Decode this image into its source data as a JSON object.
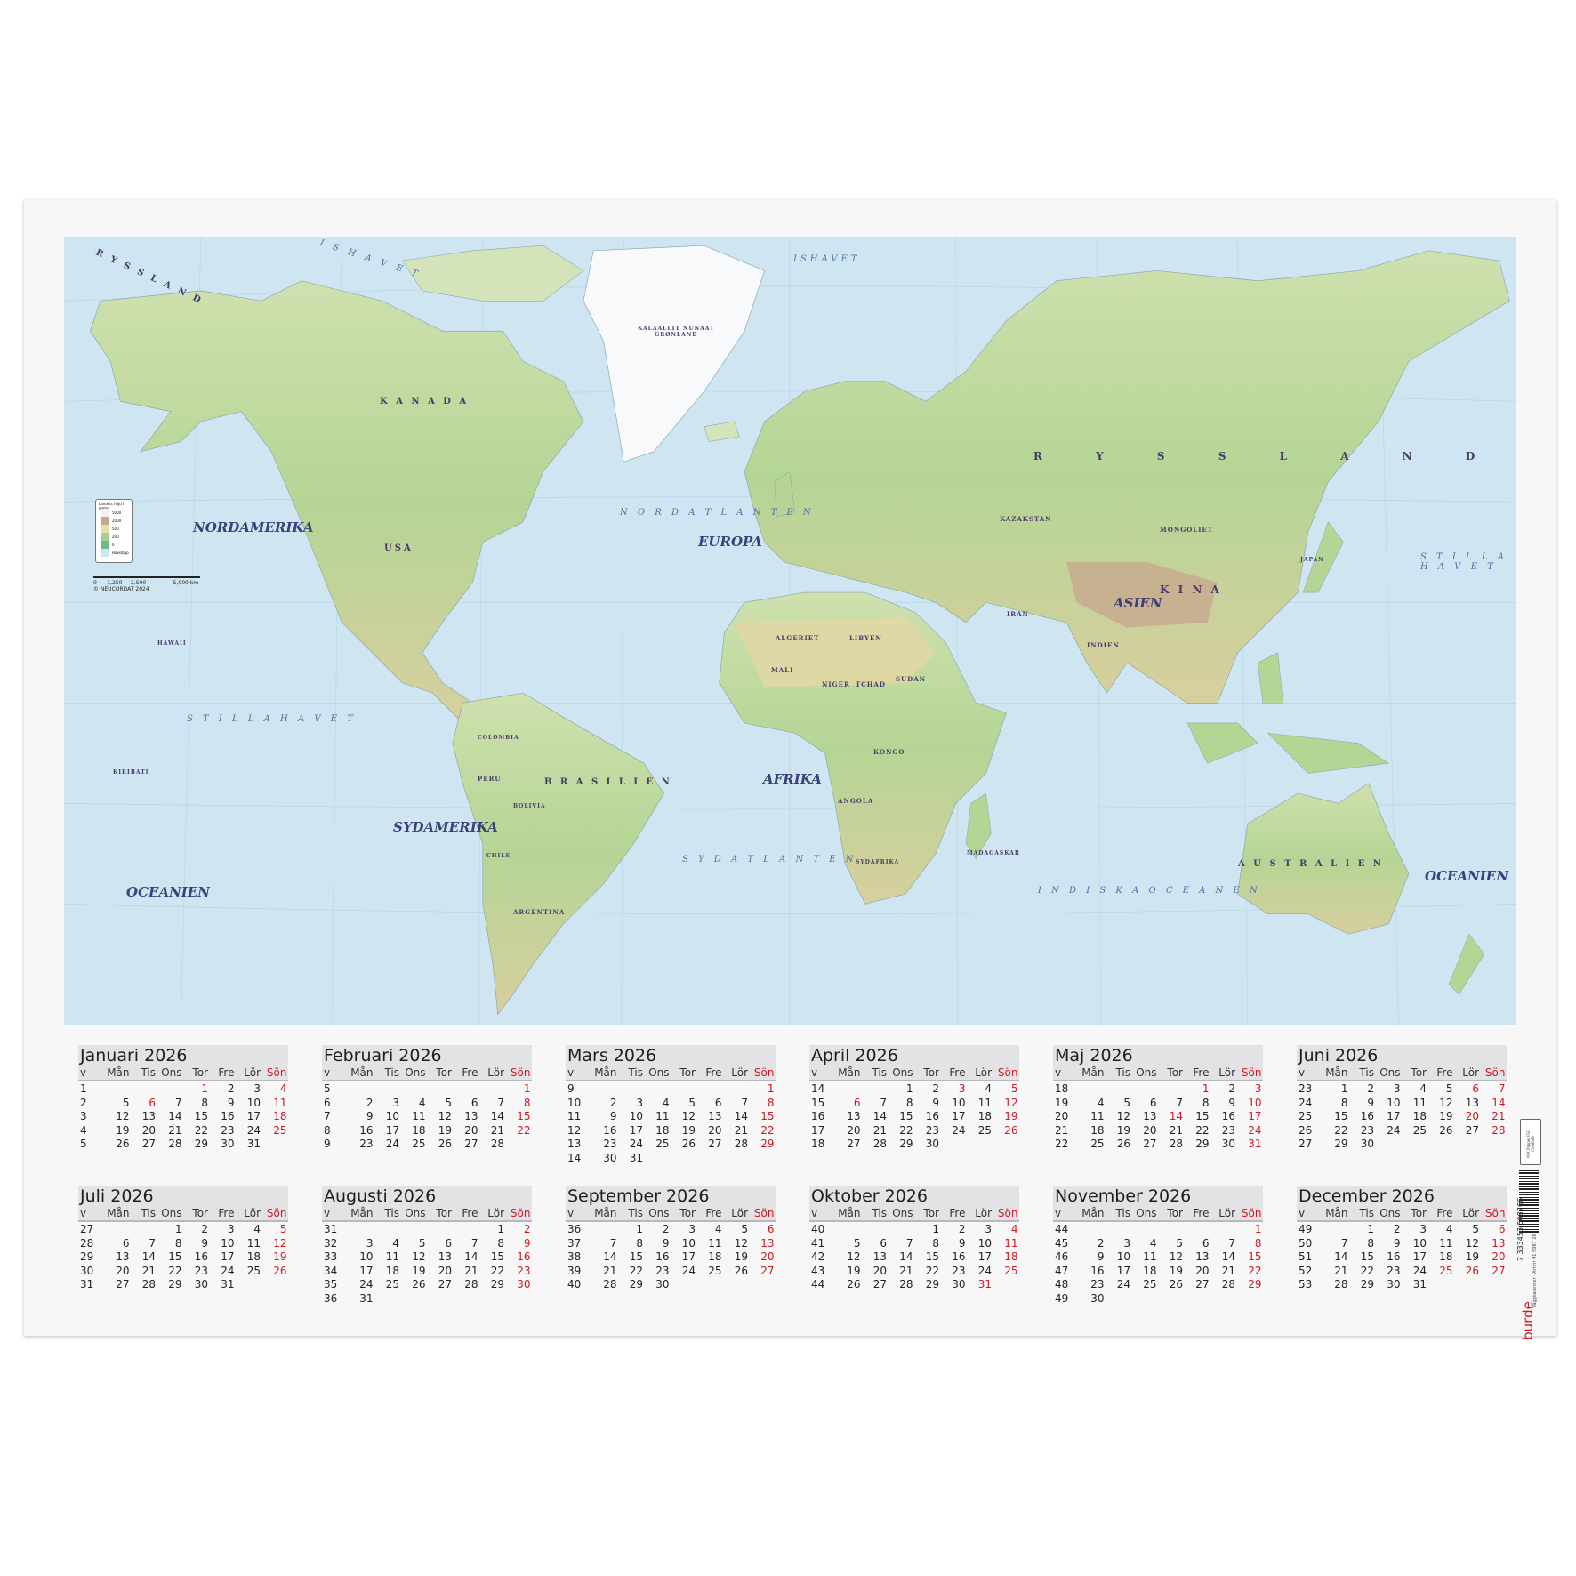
{
  "map": {
    "continents": {
      "north_america": "NORDAMERIKA",
      "south_america": "SYDAMERIKA",
      "europe": "EUROPA",
      "africa": "AFRIKA",
      "asia": "ASIEN",
      "oceania_left": "OCEANIEN",
      "oceania_right": "OCEANIEN"
    },
    "oceans": {
      "ishavet_left": "I S H A V E T",
      "ishavet_mid": "ISHAVET",
      "nordatlanten": "N O R D A T L A N T E N",
      "sydatlanten": "S Y D A T L A N T E N",
      "stilla_havet_left": "S T I L L A   H A V E T",
      "stilla_havet_right": "S T I L L A\nH A V E T",
      "indiska": "I N D I S K A   O C E A N E N"
    },
    "countries": {
      "ryssland_left": "R Y S S L A N D",
      "ryssland": "R Y S S L A N D",
      "kanada": "K A N A D A",
      "usa": "USA",
      "kina": "K I N A",
      "brasilien": "B R A S I L I E N",
      "australien": "A U S T R A L I E N",
      "greenland": "KALAALLIT NUNAAT\nGRØNLAND",
      "mongoliet": "MONGOLIET",
      "kazakstan": "KAZAKSTAN",
      "algeriet": "ALGERIET",
      "libyen": "LIBYEN",
      "argentina": "ARGENTINA",
      "peru": "PERU",
      "colombia": "COLOMBIA",
      "indien": "INDIEN",
      "iran": "IRAN",
      "mali": "MALI",
      "niger": "NIGER",
      "tchad": "TCHAD",
      "sudan": "SUDAN",
      "kongo": "KONGO",
      "angola": "ANGOLA",
      "sydafrika": "SYDAFRIKA",
      "madagaskar": "MADAGASKAR",
      "hawaii": "HAWAII",
      "kiribati": "KIRIBATI",
      "japan": "JAPAN",
      "chile": "CHILE",
      "bolivia": "BOLIVIA"
    },
    "legend": {
      "title": "Landets höjd i meter",
      "items": [
        "5000",
        "2000",
        "500",
        "200",
        "0",
        "Havsdjup"
      ],
      "colors": [
        "#f4f0f4",
        "#c9a88a",
        "#e7dfa8",
        "#a7cf8e",
        "#6fb98a",
        "#cfe6f2"
      ]
    },
    "scale": {
      "ticks": "0      1,250     2,500                5,000 km",
      "copyright": "© NEUCORDAT 2024"
    },
    "colors": {
      "ocean": "#cfe6f2",
      "land": "#b9d79a",
      "highland": "#d9c79b",
      "mountain": "#c3a58a",
      "ice": "#ffffff"
    }
  },
  "calendar": {
    "header": [
      "v",
      "Mån",
      "Tis",
      "Ons",
      "Tor",
      "Fre",
      "Lör",
      "Sön"
    ],
    "holiday_color": "#d01824",
    "months": [
      {
        "title": "Januari 2026",
        "weeks": [
          [
            "1",
            "",
            "",
            "",
            "1",
            "2",
            "3",
            "4"
          ],
          [
            "2",
            "5",
            "6",
            "7",
            "8",
            "9",
            "10",
            "11"
          ],
          [
            "3",
            "12",
            "13",
            "14",
            "15",
            "16",
            "17",
            "18"
          ],
          [
            "4",
            "19",
            "20",
            "21",
            "22",
            "23",
            "24",
            "25"
          ],
          [
            "5",
            "26",
            "27",
            "28",
            "29",
            "30",
            "31",
            ""
          ]
        ],
        "red": [
          "1",
          "6"
        ]
      },
      {
        "title": "Februari 2026",
        "weeks": [
          [
            "5",
            "",
            "",
            "",
            "",
            "",
            "",
            "1"
          ],
          [
            "6",
            "2",
            "3",
            "4",
            "5",
            "6",
            "7",
            "8"
          ],
          [
            "7",
            "9",
            "10",
            "11",
            "12",
            "13",
            "14",
            "15"
          ],
          [
            "8",
            "16",
            "17",
            "18",
            "19",
            "20",
            "21",
            "22"
          ],
          [
            "9",
            "23",
            "24",
            "25",
            "26",
            "27",
            "28",
            ""
          ]
        ],
        "red": []
      },
      {
        "title": "Mars 2026",
        "weeks": [
          [
            "9",
            "",
            "",
            "",
            "",
            "",
            "",
            "1"
          ],
          [
            "10",
            "2",
            "3",
            "4",
            "5",
            "6",
            "7",
            "8"
          ],
          [
            "11",
            "9",
            "10",
            "11",
            "12",
            "13",
            "14",
            "15"
          ],
          [
            "12",
            "16",
            "17",
            "18",
            "19",
            "20",
            "21",
            "22"
          ],
          [
            "13",
            "23",
            "24",
            "25",
            "26",
            "27",
            "28",
            "29"
          ],
          [
            "14",
            "30",
            "31",
            "",
            "",
            "",
            "",
            ""
          ]
        ],
        "red": []
      },
      {
        "title": "April 2026",
        "weeks": [
          [
            "14",
            "",
            "",
            "1",
            "2",
            "3",
            "4",
            "5"
          ],
          [
            "15",
            "6",
            "7",
            "8",
            "9",
            "10",
            "11",
            "12"
          ],
          [
            "16",
            "13",
            "14",
            "15",
            "16",
            "17",
            "18",
            "19"
          ],
          [
            "17",
            "20",
            "21",
            "22",
            "23",
            "24",
            "25",
            "26"
          ],
          [
            "18",
            "27",
            "28",
            "29",
            "30",
            "",
            "",
            ""
          ]
        ],
        "red": [
          "3",
          "6"
        ]
      },
      {
        "title": "Maj 2026",
        "weeks": [
          [
            "18",
            "",
            "",
            "",
            "",
            "1",
            "2",
            "3"
          ],
          [
            "19",
            "4",
            "5",
            "6",
            "7",
            "8",
            "9",
            "10"
          ],
          [
            "20",
            "11",
            "12",
            "13",
            "14",
            "15",
            "16",
            "17"
          ],
          [
            "21",
            "18",
            "19",
            "20",
            "21",
            "22",
            "23",
            "24"
          ],
          [
            "22",
            "25",
            "26",
            "27",
            "28",
            "29",
            "30",
            "31"
          ]
        ],
        "red": [
          "1",
          "14"
        ]
      },
      {
        "title": "Juni 2026",
        "weeks": [
          [
            "23",
            "1",
            "2",
            "3",
            "4",
            "5",
            "6",
            "7"
          ],
          [
            "24",
            "8",
            "9",
            "10",
            "11",
            "12",
            "13",
            "14"
          ],
          [
            "25",
            "15",
            "16",
            "17",
            "18",
            "19",
            "20",
            "21"
          ],
          [
            "26",
            "22",
            "23",
            "24",
            "25",
            "26",
            "27",
            "28"
          ],
          [
            "27",
            "29",
            "30",
            "",
            "",
            "",
            "",
            ""
          ]
        ],
        "red": [
          "6",
          "20"
        ]
      },
      {
        "title": "Juli 2026",
        "weeks": [
          [
            "27",
            "",
            "",
            "1",
            "2",
            "3",
            "4",
            "5"
          ],
          [
            "28",
            "6",
            "7",
            "8",
            "9",
            "10",
            "11",
            "12"
          ],
          [
            "29",
            "13",
            "14",
            "15",
            "16",
            "17",
            "18",
            "19"
          ],
          [
            "30",
            "20",
            "21",
            "22",
            "23",
            "24",
            "25",
            "26"
          ],
          [
            "31",
            "27",
            "28",
            "29",
            "30",
            "31",
            "",
            ""
          ]
        ],
        "red": []
      },
      {
        "title": "Augusti 2026",
        "weeks": [
          [
            "31",
            "",
            "",
            "",
            "",
            "",
            "1",
            "2"
          ],
          [
            "32",
            "3",
            "4",
            "5",
            "6",
            "7",
            "8",
            "9"
          ],
          [
            "33",
            "10",
            "11",
            "12",
            "13",
            "14",
            "15",
            "16"
          ],
          [
            "34",
            "17",
            "18",
            "19",
            "20",
            "21",
            "22",
            "23"
          ],
          [
            "35",
            "24",
            "25",
            "26",
            "27",
            "28",
            "29",
            "30"
          ],
          [
            "36",
            "31",
            "",
            "",
            "",
            "",
            "",
            ""
          ]
        ],
        "red": []
      },
      {
        "title": "September 2026",
        "weeks": [
          [
            "36",
            "",
            "1",
            "2",
            "3",
            "4",
            "5",
            "6"
          ],
          [
            "37",
            "7",
            "8",
            "9",
            "10",
            "11",
            "12",
            "13"
          ],
          [
            "38",
            "14",
            "15",
            "16",
            "17",
            "18",
            "19",
            "20"
          ],
          [
            "39",
            "21",
            "22",
            "23",
            "24",
            "25",
            "26",
            "27"
          ],
          [
            "40",
            "28",
            "29",
            "30",
            "",
            "",
            "",
            ""
          ]
        ],
        "red": []
      },
      {
        "title": "Oktober 2026",
        "weeks": [
          [
            "40",
            "",
            "",
            "",
            "1",
            "2",
            "3",
            "4"
          ],
          [
            "41",
            "5",
            "6",
            "7",
            "8",
            "9",
            "10",
            "11"
          ],
          [
            "42",
            "12",
            "13",
            "14",
            "15",
            "16",
            "17",
            "18"
          ],
          [
            "43",
            "19",
            "20",
            "21",
            "22",
            "23",
            "24",
            "25"
          ],
          [
            "44",
            "26",
            "27",
            "28",
            "29",
            "30",
            "31",
            ""
          ]
        ],
        "red": [
          "31"
        ]
      },
      {
        "title": "November 2026",
        "weeks": [
          [
            "44",
            "",
            "",
            "",
            "",
            "",
            "",
            "1"
          ],
          [
            "45",
            "2",
            "3",
            "4",
            "5",
            "6",
            "7",
            "8"
          ],
          [
            "46",
            "9",
            "10",
            "11",
            "12",
            "13",
            "14",
            "15"
          ],
          [
            "47",
            "16",
            "17",
            "18",
            "19",
            "20",
            "21",
            "22"
          ],
          [
            "48",
            "23",
            "24",
            "25",
            "26",
            "27",
            "28",
            "29"
          ],
          [
            "49",
            "30",
            "",
            "",
            "",
            "",
            "",
            ""
          ]
        ],
        "red": []
      },
      {
        "title": "December 2026",
        "weeks": [
          [
            "49",
            "",
            "1",
            "2",
            "3",
            "4",
            "5",
            "6"
          ],
          [
            "50",
            "7",
            "8",
            "9",
            "10",
            "11",
            "12",
            "13"
          ],
          [
            "51",
            "14",
            "15",
            "16",
            "17",
            "18",
            "19",
            "20"
          ],
          [
            "52",
            "21",
            "22",
            "23",
            "24",
            "25",
            "26",
            "27"
          ],
          [
            "53",
            "28",
            "29",
            "30",
            "31",
            "",
            "",
            ""
          ]
        ],
        "red": [
          "25",
          "26"
        ]
      }
    ]
  },
  "product": {
    "fsc": "MIX Papper FSC C108080",
    "barcode": "7 333453 508766",
    "art_nr": "Väggkalender · Art nr 91 5087 26",
    "brand": "burde"
  }
}
